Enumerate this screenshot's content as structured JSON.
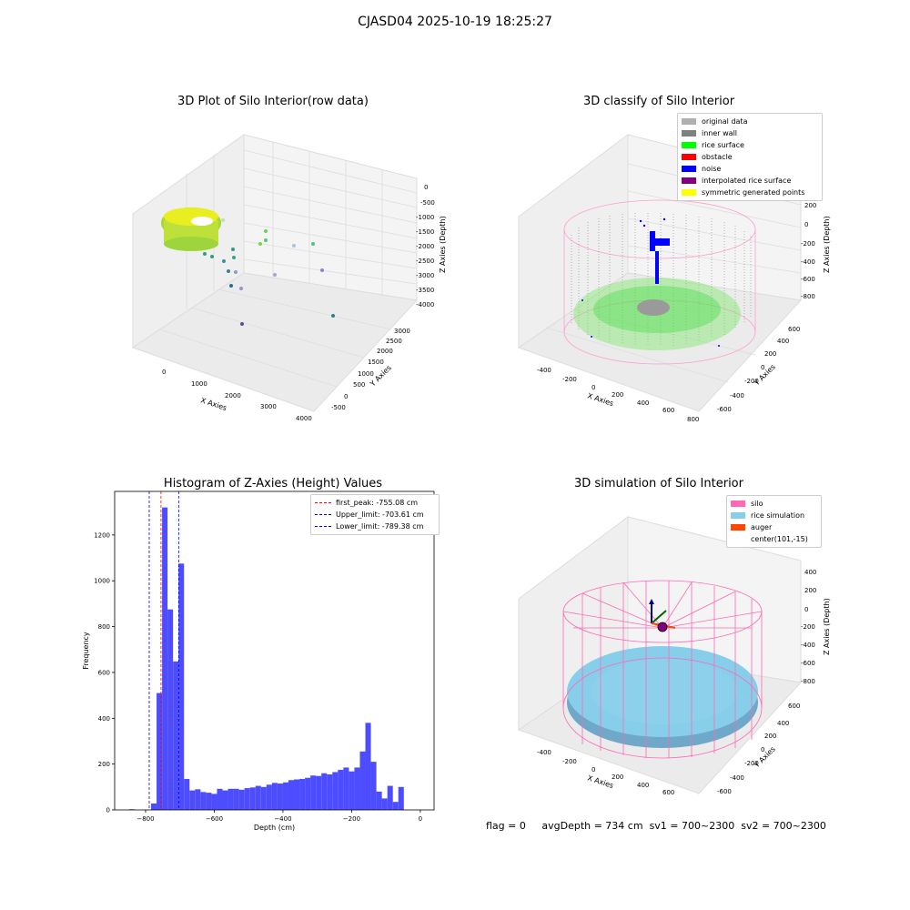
{
  "figure_title": "CJASD04 2025-10-19 18:25:27",
  "status": {
    "flag": "flag = 0",
    "avg_depth": "avgDepth = 734 cm",
    "sv1": "sv1 = 700~2300",
    "sv2": "sv2 = 700~2300"
  },
  "colors": {
    "hist_bar": "#4d4dff",
    "first_peak": "#ff0000",
    "limit": "#0000ff",
    "silo": "#ff69b4",
    "rice_simulation": "#87ceeb",
    "auger": "#ff4500",
    "wall": "#888888",
    "noise": "#0000ff",
    "rice_surface": "#00ff00"
  },
  "panels": {
    "raw": {
      "title": "3D Plot of Silo Interior(row data)",
      "x_label": "X Axies",
      "y_label": "Y Axies",
      "z_label": "Z Axies (Depth)",
      "x_ticks": [
        "0",
        "1000",
        "2000",
        "3000",
        "4000"
      ],
      "y_ticks": [
        "-500",
        "0",
        "500",
        "1000",
        "1500",
        "2000",
        "2500",
        "3000"
      ],
      "z_ticks": [
        "0",
        "-500",
        "-1000",
        "-1500",
        "-2000",
        "-2500",
        "-3000",
        "-3500",
        "-4000"
      ]
    },
    "classify": {
      "title": "3D classify of Silo Interior",
      "x_label": "X Axies",
      "y_label": "Y Axies",
      "z_label": "Z Axies (Depth)",
      "x_ticks": [
        "-400",
        "-200",
        "0",
        "200",
        "400",
        "600",
        "800"
      ],
      "y_ticks": [
        "-600",
        "-400",
        "-200",
        "0",
        "200",
        "400",
        "600"
      ],
      "z_ticks": [
        "200",
        "0",
        "-200",
        "-400",
        "-600",
        "-800"
      ],
      "legend": [
        {
          "label": "original data",
          "color": "#b0b0b0"
        },
        {
          "label": "inner wall",
          "color": "#808080"
        },
        {
          "label": "rice surface",
          "color": "#00ff00"
        },
        {
          "label": "obstacle",
          "color": "#ff0000"
        },
        {
          "label": "noise",
          "color": "#0000ff"
        },
        {
          "label": "interpolated rice surface",
          "color": "#800080"
        },
        {
          "label": "symmetric generated points",
          "color": "#ffff00"
        }
      ]
    },
    "simulation": {
      "title": "3D simulation of Silo Interior",
      "x_label": "X Axies",
      "y_label": "Y Axies",
      "z_label": "Z Axies (Depth)",
      "x_ticks": [
        "-400",
        "-200",
        "0",
        "200",
        "400",
        "600"
      ],
      "y_ticks": [
        "-600",
        "-400",
        "-200",
        "0",
        "200",
        "400",
        "600"
      ],
      "z_ticks": [
        "400",
        "200",
        "0",
        "-200",
        "-400",
        "-600",
        "-800"
      ],
      "legend": [
        {
          "label": "silo",
          "color": "#ff69b4"
        },
        {
          "label": "rice simulation",
          "color": "#87ceeb"
        },
        {
          "label": "auger",
          "color": "#ff4500"
        },
        {
          "label": "center(101,-15)",
          "color": ""
        }
      ]
    }
  },
  "chart_data": {
    "type": "bar",
    "title": "Histogram of Z-Axies (Height) Values",
    "xlabel": "Depth (cm)",
    "ylabel": "Frequency",
    "xlim": [
      -890,
      40
    ],
    "ylim": [
      0,
      1390
    ],
    "x_ticks": [
      -800,
      -600,
      -400,
      -200,
      0
    ],
    "y_ticks": [
      0,
      200,
      400,
      600,
      800,
      1000,
      1200
    ],
    "bin_width": 16,
    "bins": [
      {
        "x0": -848,
        "value": 3
      },
      {
        "x0": -832,
        "value": 0
      },
      {
        "x0": -816,
        "value": 0
      },
      {
        "x0": -800,
        "value": 0
      },
      {
        "x0": -784,
        "value": 28
      },
      {
        "x0": -768,
        "value": 510
      },
      {
        "x0": -752,
        "value": 1320
      },
      {
        "x0": -736,
        "value": 875
      },
      {
        "x0": -720,
        "value": 648
      },
      {
        "x0": -704,
        "value": 1075
      },
      {
        "x0": -688,
        "value": 135
      },
      {
        "x0": -672,
        "value": 85
      },
      {
        "x0": -656,
        "value": 90
      },
      {
        "x0": -640,
        "value": 78
      },
      {
        "x0": -624,
        "value": 75
      },
      {
        "x0": -608,
        "value": 70
      },
      {
        "x0": -592,
        "value": 92
      },
      {
        "x0": -576,
        "value": 85
      },
      {
        "x0": -560,
        "value": 92
      },
      {
        "x0": -544,
        "value": 92
      },
      {
        "x0": -528,
        "value": 88
      },
      {
        "x0": -512,
        "value": 95
      },
      {
        "x0": -496,
        "value": 98
      },
      {
        "x0": -480,
        "value": 105
      },
      {
        "x0": -464,
        "value": 100
      },
      {
        "x0": -448,
        "value": 110
      },
      {
        "x0": -432,
        "value": 118
      },
      {
        "x0": -416,
        "value": 115
      },
      {
        "x0": -400,
        "value": 120
      },
      {
        "x0": -384,
        "value": 130
      },
      {
        "x0": -368,
        "value": 133
      },
      {
        "x0": -352,
        "value": 135
      },
      {
        "x0": -336,
        "value": 140
      },
      {
        "x0": -320,
        "value": 150
      },
      {
        "x0": -304,
        "value": 148
      },
      {
        "x0": -288,
        "value": 160
      },
      {
        "x0": -272,
        "value": 155
      },
      {
        "x0": -256,
        "value": 165
      },
      {
        "x0": -240,
        "value": 175
      },
      {
        "x0": -224,
        "value": 185
      },
      {
        "x0": -208,
        "value": 168
      },
      {
        "x0": -192,
        "value": 185
      },
      {
        "x0": -176,
        "value": 255
      },
      {
        "x0": -160,
        "value": 380
      },
      {
        "x0": -144,
        "value": 210
      },
      {
        "x0": -128,
        "value": 80
      },
      {
        "x0": -112,
        "value": 50
      },
      {
        "x0": -96,
        "value": 105
      },
      {
        "x0": -80,
        "value": 35
      },
      {
        "x0": -64,
        "value": 100
      }
    ],
    "vlines": [
      {
        "x": -755.08,
        "label": "first_peak: -755.08 cm",
        "color": "#ff0000"
      },
      {
        "x": -703.61,
        "label": "Upper_limit: -703.61 cm",
        "color": "#0000ff"
      },
      {
        "x": -789.38,
        "label": "Lower_limit: -789.38 cm",
        "color": "#0000ff"
      }
    ],
    "legend_position": "top-right"
  }
}
